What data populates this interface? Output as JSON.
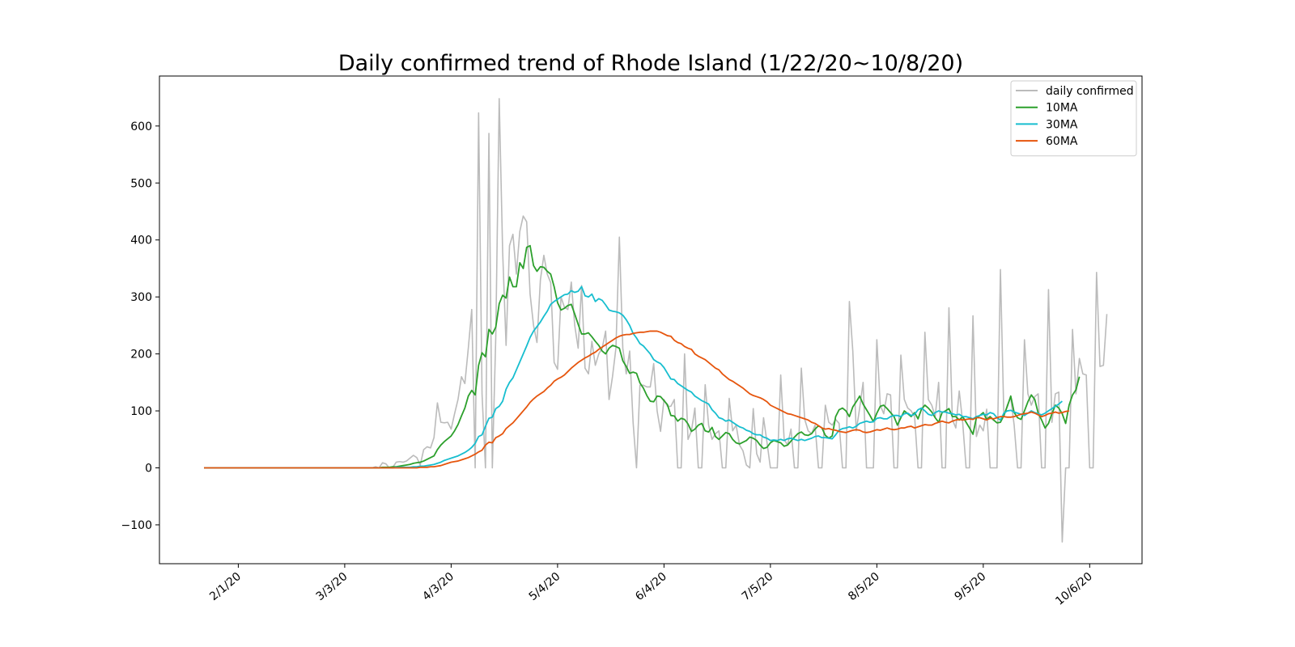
{
  "chart_data": {
    "type": "line",
    "title": "Daily confirmed trend of Rhode Island (1/22/20~10/8/20)",
    "xlabel": "",
    "ylabel": "",
    "start_date": "1/22/20",
    "end_date": "10/8/20",
    "num_days": 261,
    "ylim": [
      -170,
      680
    ],
    "yticks": [
      -100,
      0,
      100,
      200,
      300,
      400,
      500,
      600
    ],
    "ytick_labels": [
      "−100",
      "0",
      "100",
      "200",
      "300",
      "400",
      "500",
      "600"
    ],
    "xticks": [
      10,
      41,
      72,
      103,
      134,
      165,
      196,
      227,
      258
    ],
    "xtick_labels": [
      "2/1/20",
      "3/3/20",
      "4/3/20",
      "5/4/20",
      "6/4/20",
      "7/5/20",
      "8/5/20",
      "9/5/20",
      "10/6/20"
    ],
    "legend_position": "upper right",
    "series": [
      {
        "name": "daily confirmed",
        "color": "#bbbbbb",
        "values": [
          0,
          0,
          0,
          0,
          0,
          0,
          0,
          0,
          0,
          0,
          0,
          0,
          0,
          0,
          0,
          0,
          0,
          0,
          0,
          0,
          0,
          0,
          0,
          0,
          0,
          0,
          0,
          0,
          0,
          0,
          0,
          0,
          0,
          0,
          0,
          0,
          0,
          0,
          0,
          0,
          0,
          0,
          0,
          0,
          0,
          0,
          0,
          0,
          0,
          0,
          2,
          0,
          9,
          7,
          0,
          1,
          10,
          11,
          10,
          12,
          17,
          22,
          18,
          5,
          32,
          37,
          35,
          53,
          114,
          80,
          79,
          80,
          68,
          95,
          120,
          160,
          148,
          210,
          278,
          0,
          623,
          130,
          0,
          587,
          0,
          230,
          648,
          380,
          215,
          390,
          410,
          340,
          415,
          442,
          432,
          305,
          250,
          220,
          330,
          373,
          340,
          325,
          185,
          173,
          300,
          282,
          278,
          326,
          250,
          210,
          320,
          175,
          165,
          222,
          180,
          200,
          210,
          240,
          120,
          160,
          210,
          405,
          210,
          165,
          205,
          80,
          0,
          145,
          145,
          142,
          142,
          183,
          100,
          64,
          120,
          108,
          108,
          120,
          0,
          0,
          200,
          50,
          65,
          105,
          0,
          0,
          146,
          75,
          50,
          60,
          65,
          0,
          0,
          122,
          65,
          75,
          40,
          30,
          5,
          0,
          104,
          25,
          10,
          88,
          45,
          0,
          0,
          0,
          163,
          50,
          40,
          68,
          0,
          0,
          175,
          85,
          65,
          60,
          75,
          0,
          0,
          110,
          80,
          75,
          85,
          78,
          0,
          0,
          292,
          205,
          65,
          105,
          150,
          0,
          0,
          0,
          225,
          110,
          95,
          130,
          128,
          0,
          0,
          198,
          120,
          105,
          100,
          90,
          0,
          0,
          238,
          120,
          110,
          90,
          150,
          0,
          0,
          281,
          85,
          70,
          135,
          80,
          0,
          0,
          267,
          55,
          75,
          65,
          103,
          0,
          0,
          0,
          348,
          90,
          110,
          123,
          75,
          0,
          0,
          225,
          130,
          110,
          125,
          130,
          0,
          0,
          313,
          80,
          130,
          133,
          -130,
          0,
          0,
          243,
          130,
          192,
          165,
          163,
          0,
          0,
          343,
          178,
          180,
          270
        ]
      },
      {
        "name": "10MA",
        "color": "#2ca02c",
        "values": [
          0,
          0,
          0,
          0,
          0,
          0,
          0,
          0,
          0,
          0,
          0,
          0,
          0,
          0,
          0,
          0,
          0,
          0,
          0,
          0,
          0,
          0,
          0,
          0,
          0,
          0,
          0,
          0,
          0,
          0,
          0,
          0,
          0,
          0,
          0,
          0,
          0,
          0,
          0,
          0,
          0,
          0,
          0,
          0,
          0,
          0,
          0,
          0,
          0,
          0,
          0,
          0,
          1,
          1,
          1,
          2,
          2,
          3,
          4,
          5,
          6,
          8,
          9,
          10,
          12,
          15,
          18,
          21,
          32,
          40,
          46,
          51,
          56,
          65,
          76,
          91,
          105,
          126,
          136,
          128,
          180,
          202,
          195,
          243,
          235,
          247,
          288,
          303,
          298,
          335,
          318,
          318,
          360,
          350,
          387,
          390,
          355,
          345,
          353,
          352,
          345,
          340,
          318,
          290,
          277,
          280,
          285,
          287,
          270,
          252,
          235,
          235,
          237,
          230,
          222,
          215,
          205,
          200,
          210,
          215,
          213,
          210,
          188,
          178,
          166,
          168,
          166,
          149,
          140,
          127,
          117,
          116,
          126,
          125,
          118,
          111,
          92,
          91,
          82,
          87,
          85,
          77,
          64,
          68,
          75,
          78,
          65,
          63,
          71,
          55,
          50,
          56,
          62,
          60,
          50,
          44,
          42,
          45,
          48,
          54,
          52,
          48,
          40,
          34,
          36,
          44,
          48,
          46,
          44,
          38,
          40,
          47,
          54,
          60,
          63,
          58,
          57,
          60,
          68,
          74,
          70,
          57,
          52,
          56,
          90,
          102,
          105,
          100,
          90,
          107,
          116,
          126,
          112,
          102,
          92,
          81,
          96,
          108,
          110,
          104,
          97,
          90,
          75,
          88,
          100,
          95,
          90,
          97,
          86,
          103,
          110,
          105,
          98,
          88,
          80,
          97,
          100,
          104,
          90,
          90,
          84,
          90,
          80,
          70,
          59,
          88,
          92,
          97,
          85,
          90,
          84,
          79,
          80,
          92,
          108,
          126,
          97,
          88,
          85,
          100,
          116,
          128,
          120,
          96,
          84,
          70,
          78,
          95,
          110,
          105,
          95,
          78,
          110,
          128,
          137,
          160
        ]
      },
      {
        "name": "30MA",
        "color": "#17becf",
        "values": [
          0,
          0,
          0,
          0,
          0,
          0,
          0,
          0,
          0,
          0,
          0,
          0,
          0,
          0,
          0,
          0,
          0,
          0,
          0,
          0,
          0,
          0,
          0,
          0,
          0,
          0,
          0,
          0,
          0,
          0,
          0,
          0,
          0,
          0,
          0,
          0,
          0,
          0,
          0,
          0,
          0,
          0,
          0,
          0,
          0,
          0,
          0,
          0,
          0,
          0,
          0,
          0,
          0,
          0,
          0,
          0,
          1,
          1,
          1,
          1,
          1,
          2,
          2,
          3,
          3,
          4,
          5,
          6,
          8,
          10,
          13,
          15,
          17,
          19,
          21,
          24,
          27,
          31,
          36,
          43,
          55,
          58,
          73,
          87,
          89,
          104,
          108,
          117,
          138,
          150,
          158,
          172,
          186,
          200,
          214,
          229,
          240,
          248,
          256,
          266,
          275,
          287,
          292,
          296,
          300,
          304,
          305,
          311,
          308,
          310,
          318,
          302,
          300,
          305,
          292,
          297,
          294,
          286,
          277,
          275,
          274,
          272,
          268,
          260,
          250,
          236,
          228,
          218,
          214,
          207,
          200,
          190,
          186,
          183,
          176,
          166,
          156,
          155,
          148,
          144,
          140,
          136,
          133,
          126,
          122,
          118,
          115,
          112,
          102,
          96,
          88,
          86,
          82,
          84,
          80,
          76,
          72,
          70,
          66,
          64,
          60,
          58,
          58,
          54,
          52,
          48,
          49,
          48,
          50,
          48,
          51,
          52,
          50,
          48,
          50,
          48,
          50,
          52,
          55,
          56,
          53,
          53,
          52,
          51,
          58,
          66,
          69,
          70,
          72,
          70,
          73,
          78,
          80,
          82,
          80,
          81,
          87,
          88,
          86,
          86,
          90,
          92,
          92,
          90,
          95,
          96,
          92,
          94,
          102,
          105,
          100,
          94,
          92,
          97,
          100,
          98,
          98,
          96,
          95,
          93,
          94,
          90,
          90,
          88,
          86,
          90,
          92,
          94,
          93,
          97,
          95,
          88,
          84,
          96,
          100,
          101,
          98,
          96,
          94,
          92,
          96,
          100,
          97,
          95,
          93,
          96,
          100,
          104,
          108,
          112,
          117
        ]
      },
      {
        "name": "60MA",
        "color": "#e6550d",
        "values": [
          0,
          0,
          0,
          0,
          0,
          0,
          0,
          0,
          0,
          0,
          0,
          0,
          0,
          0,
          0,
          0,
          0,
          0,
          0,
          0,
          0,
          0,
          0,
          0,
          0,
          0,
          0,
          0,
          0,
          0,
          0,
          0,
          0,
          0,
          0,
          0,
          0,
          0,
          0,
          0,
          0,
          0,
          0,
          0,
          0,
          0,
          0,
          0,
          0,
          0,
          0,
          0,
          0,
          0,
          0,
          0,
          0,
          0,
          0,
          0,
          0,
          0,
          0,
          1,
          1,
          1,
          2,
          2,
          3,
          4,
          6,
          8,
          10,
          11,
          12,
          14,
          16,
          18,
          21,
          24,
          28,
          31,
          40,
          45,
          44,
          53,
          56,
          60,
          69,
          74,
          79,
          86,
          93,
          100,
          107,
          115,
          121,
          126,
          130,
          134,
          140,
          145,
          152,
          156,
          159,
          163,
          169,
          175,
          180,
          185,
          189,
          193,
          196,
          200,
          203,
          208,
          212,
          216,
          220,
          224,
          228,
          231,
          233,
          234,
          234,
          236,
          237,
          238,
          238,
          239,
          240,
          240,
          240,
          238,
          235,
          232,
          231,
          224,
          220,
          218,
          213,
          210,
          208,
          200,
          196,
          193,
          190,
          185,
          180,
          175,
          172,
          165,
          160,
          155,
          152,
          148,
          144,
          140,
          135,
          130,
          127,
          125,
          123,
          120,
          116,
          110,
          107,
          104,
          101,
          98,
          95,
          94,
          92,
          90,
          88,
          86,
          84,
          80,
          78,
          74,
          70,
          68,
          69,
          67,
          66,
          64,
          63,
          62,
          64,
          66,
          67,
          66,
          63,
          62,
          63,
          65,
          67,
          66,
          68,
          70,
          68,
          67,
          68,
          70,
          70,
          72,
          73,
          70,
          72,
          74,
          76,
          75,
          75,
          78,
          80,
          82,
          80,
          79,
          82,
          84,
          85,
          84,
          85,
          86,
          85,
          88,
          88,
          86,
          84,
          87,
          86,
          88,
          90,
          90,
          89,
          89,
          90,
          92,
          94,
          95,
          96,
          98,
          96,
          93,
          90,
          92,
          95,
          96,
          98,
          96,
          97,
          99,
          100
        ]
      }
    ]
  }
}
